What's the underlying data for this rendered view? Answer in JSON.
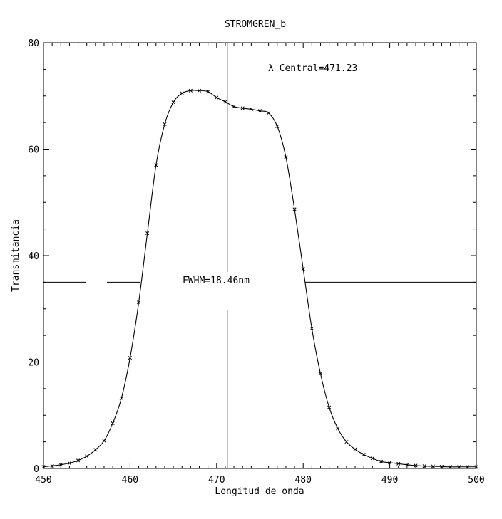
{
  "chart_data": {
    "type": "line",
    "title": "STROMGREN_b",
    "xlabel": "Longitud de onda",
    "ylabel": "Transmitancia",
    "xlim": [
      450,
      500
    ],
    "ylim": [
      0,
      80
    ],
    "x_ticks": [
      450,
      460,
      470,
      480,
      490,
      500
    ],
    "x_tick_labels": [
      "450",
      "460",
      "470",
      "480",
      "490",
      "500"
    ],
    "y_ticks": [
      0,
      20,
      40,
      60,
      80
    ],
    "y_tick_labels": [
      "0",
      "20",
      "40",
      "60",
      "80"
    ],
    "grid": false,
    "series": [
      {
        "marker": "x",
        "x": [
          450,
          451,
          452,
          453,
          454,
          455,
          456,
          457,
          458,
          459,
          460,
          461,
          462,
          463,
          464,
          465,
          466,
          467,
          468,
          469,
          470,
          471,
          472,
          473,
          474,
          475,
          476,
          477,
          478,
          479,
          480,
          481,
          482,
          483,
          484,
          485,
          486,
          487,
          488,
          489,
          490,
          491,
          492,
          493,
          494,
          495,
          496,
          497,
          498,
          499,
          500
        ],
        "y": [
          0.3,
          0.5,
          0.7,
          1.0,
          1.5,
          2.3,
          3.5,
          5.2,
          8.5,
          13.2,
          20.8,
          31.2,
          44.2,
          57.0,
          64.7,
          68.8,
          70.5,
          71.0,
          71.0,
          70.8,
          69.7,
          68.9,
          68.0,
          67.7,
          67.5,
          67.2,
          66.8,
          64.3,
          58.5,
          48.7,
          37.5,
          26.3,
          17.8,
          11.5,
          7.5,
          5.0,
          3.6,
          2.6,
          1.9,
          1.3,
          1.1,
          0.9,
          0.7,
          0.55,
          0.45,
          0.4,
          0.35,
          0.3,
          0.3,
          0.3,
          0.3
        ]
      }
    ],
    "annotations": {
      "central_label": "λ Central=471.23",
      "central_x": 471.23,
      "fwhm_label": "FWHM=18.46nm",
      "fwhm_y": 35
    }
  }
}
